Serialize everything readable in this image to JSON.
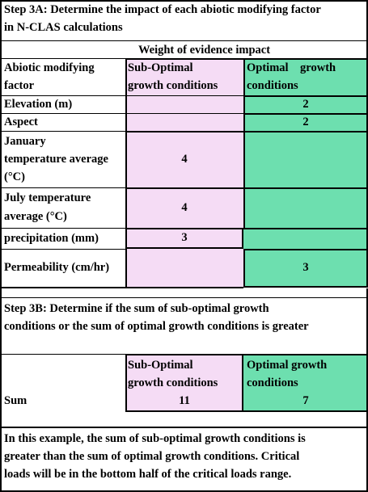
{
  "step3a": {
    "title_line1": "Step 3A: Determine the impact of each abiotic modifying factor",
    "title_line2": "in N-CLAS calculations",
    "weight_header": "Weight of evidence impact",
    "col_factor_line1": "Abiotic modifying",
    "col_factor_line2": "factor",
    "col_sub_line1": "Sub-Optimal",
    "col_sub_line2": "growth conditions",
    "col_opt_line1": "Optimal    growth",
    "col_opt_line2": "conditions",
    "rows": [
      {
        "label": [
          "Elevation (m)"
        ],
        "sub": "",
        "opt": "2"
      },
      {
        "label": [
          "Aspect"
        ],
        "sub": "",
        "opt": "2"
      },
      {
        "label": [
          "January",
          "temperature average",
          "(°C)"
        ],
        "sub": "4",
        "opt": ""
      },
      {
        "label": [
          "July temperature",
          "average (°C)"
        ],
        "sub": "4",
        "opt": ""
      },
      {
        "label": [
          "precipitation (mm)"
        ],
        "sub": "3",
        "opt": ""
      },
      {
        "label": [
          "Permeability (cm/hr)"
        ],
        "sub": "",
        "opt": "3"
      }
    ]
  },
  "step3b": {
    "title_line1": "Step 3B: Determine if  the sum of sub-optimal growth",
    "title_line2": "conditions or the sum of optimal growth conditions is greater",
    "col_sub_line1": "Sub-Optimal",
    "col_sub_line2": "growth conditions",
    "col_opt_line1": "Optimal growth",
    "col_opt_line2": "conditions",
    "sum_label": "Sum",
    "sum_sub": "11",
    "sum_opt": "7"
  },
  "conclusion": {
    "line1": "In this example, the  sum of sub-optimal growth conditions is",
    "line2": "greater than the sum of optimal growth conditions.  Critical",
    "line3": "loads will be in the bottom half of the critical loads range."
  },
  "colors": {
    "pink": "#f5dcf5",
    "green": "#6ddfaf"
  }
}
